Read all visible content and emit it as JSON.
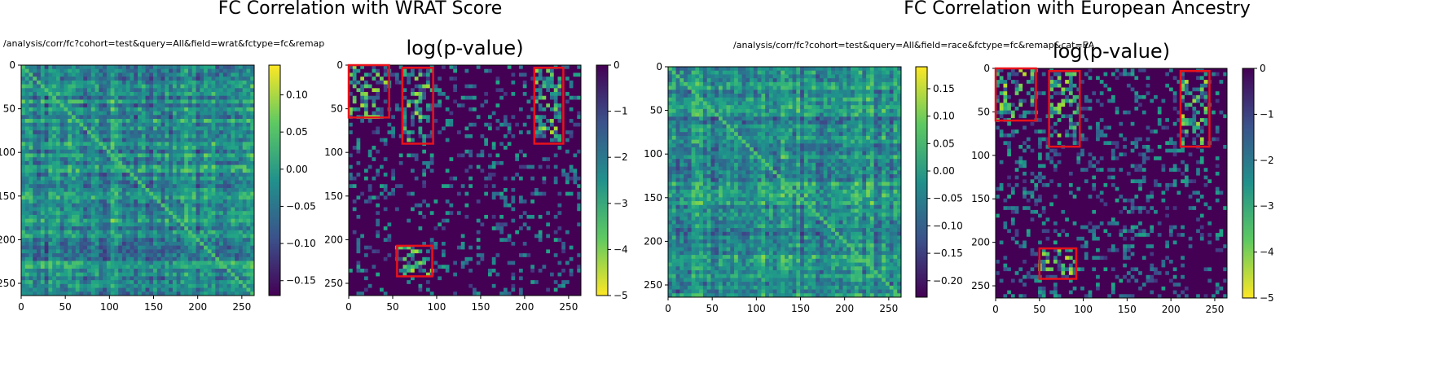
{
  "figure_titles": {
    "left": "FC Correlation with WRAT Score",
    "right": "FC Correlation with European Ancestry"
  },
  "urls": {
    "left": "/analysis/corr/fc?cohort=test&query=All&field=wrat&fctype=fc&remap",
    "right": "/analysis/corr/fc?cohort=test&query=All&field=race&fctype=fc&remap&cat=EA"
  },
  "colors": {
    "viridis_low": "#440154",
    "viridis_mid": "#21918c",
    "viridis_high": "#fde725",
    "highlight_box": "#e8121a"
  },
  "chart_data": [
    {
      "type": "heatmap",
      "title": "",
      "xlim": [
        0,
        264
      ],
      "ylim": [
        264,
        0
      ],
      "x_ticks": [
        0,
        50,
        100,
        150,
        200,
        250
      ],
      "y_ticks": [
        0,
        50,
        100,
        150,
        200,
        250
      ],
      "colormap": "viridis",
      "colorbar": {
        "min": -0.17,
        "max": 0.14,
        "ticks": [
          0.1,
          0.05,
          0.0,
          -0.05,
          -0.1,
          -0.15
        ],
        "tick_labels": [
          "0.10",
          "0.05",
          "0.00",
          "−0.05",
          "−0.10",
          "−0.15"
        ]
      },
      "highlight_boxes": []
    },
    {
      "type": "heatmap",
      "title": "log(p-value)",
      "xlim": [
        0,
        264
      ],
      "ylim": [
        264,
        0
      ],
      "x_ticks": [
        0,
        50,
        100,
        150,
        200,
        250
      ],
      "y_ticks": [
        0,
        50,
        100,
        150,
        200,
        250
      ],
      "colormap": "viridis_r",
      "colorbar": {
        "min": -5,
        "max": 0,
        "ticks": [
          0,
          -1,
          -2,
          -3,
          -4,
          -5
        ],
        "tick_labels": [
          "0",
          "−1",
          "−2",
          "−3",
          "−4",
          "−5"
        ]
      },
      "highlight_boxes": [
        {
          "x0": 0,
          "x1": 46,
          "y0": 0,
          "y1": 60
        },
        {
          "x0": 61,
          "x1": 96,
          "y0": 3,
          "y1": 90
        },
        {
          "x0": 211,
          "x1": 244,
          "y0": 3,
          "y1": 90
        },
        {
          "x0": 55,
          "x1": 95,
          "y0": 207,
          "y1": 242
        }
      ]
    },
    {
      "type": "heatmap",
      "title": "",
      "xlim": [
        0,
        264
      ],
      "ylim": [
        264,
        0
      ],
      "x_ticks": [
        0,
        50,
        100,
        150,
        200,
        250
      ],
      "y_ticks": [
        0,
        50,
        100,
        150,
        200,
        250
      ],
      "colormap": "viridis",
      "colorbar": {
        "min": -0.23,
        "max": 0.19,
        "ticks": [
          0.15,
          0.1,
          0.05,
          0.0,
          -0.05,
          -0.1,
          -0.15,
          -0.2
        ],
        "tick_labels": [
          "0.15",
          "0.10",
          "0.05",
          "0.00",
          "−0.05",
          "−0.10",
          "−0.15",
          "−0.20"
        ]
      },
      "highlight_boxes": []
    },
    {
      "type": "heatmap",
      "title": "log(p-value)",
      "xlim": [
        0,
        264
      ],
      "ylim": [
        264,
        0
      ],
      "x_ticks": [
        0,
        50,
        100,
        150,
        200,
        250
      ],
      "y_ticks": [
        0,
        50,
        100,
        150,
        200,
        250
      ],
      "colormap": "viridis_r",
      "colorbar": {
        "min": -5,
        "max": 0,
        "ticks": [
          0,
          -1,
          -2,
          -3,
          -4,
          -5
        ],
        "tick_labels": [
          "0",
          "−1",
          "−2",
          "−3",
          "−4",
          "−5"
        ]
      },
      "highlight_boxes": [
        {
          "x0": 0,
          "x1": 46,
          "y0": 0,
          "y1": 60
        },
        {
          "x0": 61,
          "x1": 96,
          "y0": 3,
          "y1": 90
        },
        {
          "x0": 211,
          "x1": 244,
          "y0": 3,
          "y1": 90
        },
        {
          "x0": 50,
          "x1": 92,
          "y0": 207,
          "y1": 242
        }
      ]
    }
  ]
}
